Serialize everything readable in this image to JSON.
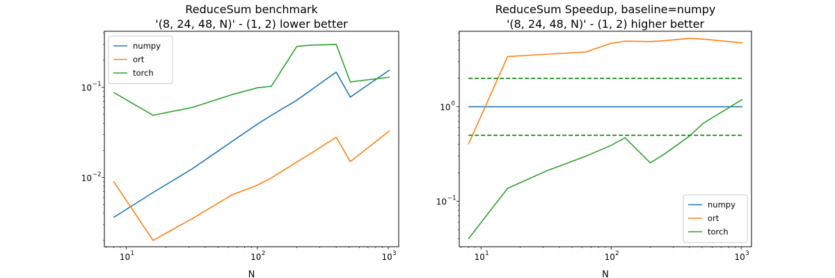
{
  "chart_data": [
    {
      "type": "line",
      "title_line1": "ReduceSum benchmark",
      "title_line2": "'(8, 24, 48, N)' - (1, 2) lower better",
      "xlabel": "N",
      "ylabel": "",
      "xscale": "log",
      "yscale": "log",
      "xlim": [
        6.8,
        1200
      ],
      "ylim": [
        0.0017,
        0.42
      ],
      "xticks": [
        {
          "value": 10,
          "base": "10",
          "exp": "1"
        },
        {
          "value": 100,
          "base": "10",
          "exp": "2"
        },
        {
          "value": 1000,
          "base": "10",
          "exp": "3"
        }
      ],
      "yticks": [
        {
          "value": 0.01,
          "base": "10",
          "exp": "−2"
        },
        {
          "value": 0.1,
          "base": "10",
          "exp": "−1"
        }
      ],
      "legend_position": "top-left",
      "grid": false,
      "series": [
        {
          "name": "numpy",
          "color": "#1f77b4",
          "x": [
            8,
            16,
            32,
            64,
            100,
            128,
            200,
            256,
            400,
            512,
            1024
          ],
          "y": [
            0.0036,
            0.0068,
            0.0125,
            0.025,
            0.039,
            0.049,
            0.072,
            0.093,
            0.148,
            0.078,
            0.156
          ]
        },
        {
          "name": "ort",
          "color": "#ff7f0e",
          "x": [
            8,
            16,
            32,
            64,
            100,
            128,
            200,
            256,
            400,
            512,
            1024
          ],
          "y": [
            0.009,
            0.002,
            0.0035,
            0.0064,
            0.0082,
            0.0099,
            0.0148,
            0.0185,
            0.028,
            0.015,
            0.033
          ]
        },
        {
          "name": "torch",
          "color": "#2ca02c",
          "x": [
            8,
            16,
            32,
            64,
            100,
            128,
            200,
            256,
            400,
            512,
            1024
          ],
          "y": [
            0.088,
            0.049,
            0.06,
            0.083,
            0.099,
            0.103,
            0.285,
            0.295,
            0.3,
            0.115,
            0.13
          ]
        }
      ]
    },
    {
      "type": "line",
      "title_line1": "ReduceSum Speedup, baseline=numpy",
      "title_line2": "'(8, 24, 48, N)' - (1, 2) higher better",
      "xlabel": "N",
      "ylabel": "",
      "xscale": "log",
      "yscale": "log",
      "xlim": [
        6.8,
        1200
      ],
      "ylim": [
        0.033,
        6.3
      ],
      "xticks": [
        {
          "value": 10,
          "base": "10",
          "exp": "1"
        },
        {
          "value": 100,
          "base": "10",
          "exp": "2"
        },
        {
          "value": 1000,
          "base": "10",
          "exp": "3"
        }
      ],
      "yticks": [
        {
          "value": 0.1,
          "base": "10",
          "exp": "−1"
        },
        {
          "value": 1,
          "base": "10",
          "exp": "0"
        }
      ],
      "legend_position": "bottom-right",
      "grid": false,
      "reference_lines": [
        {
          "y": 2.0,
          "color": "#008000",
          "style": "dashed"
        },
        {
          "y": 0.5,
          "color": "#008000",
          "style": "dashed"
        }
      ],
      "series": [
        {
          "name": "numpy",
          "color": "#1f77b4",
          "x": [
            8,
            16,
            32,
            64,
            100,
            128,
            200,
            256,
            400,
            512,
            1024
          ],
          "y": [
            1,
            1,
            1,
            1,
            1,
            1,
            1,
            1,
            1,
            1,
            1
          ]
        },
        {
          "name": "ort",
          "color": "#ff7f0e",
          "x": [
            8,
            16,
            32,
            64,
            100,
            128,
            200,
            256,
            400,
            512,
            1024
          ],
          "y": [
            0.4,
            3.4,
            3.6,
            3.8,
            4.7,
            4.95,
            4.9,
            5.0,
            5.3,
            5.2,
            4.75
          ]
        },
        {
          "name": "torch",
          "color": "#2ca02c",
          "x": [
            8,
            16,
            32,
            64,
            100,
            128,
            200,
            256,
            400,
            512,
            1024
          ],
          "y": [
            0.04,
            0.137,
            0.21,
            0.3,
            0.39,
            0.47,
            0.255,
            0.315,
            0.49,
            0.67,
            1.2
          ]
        }
      ]
    }
  ]
}
